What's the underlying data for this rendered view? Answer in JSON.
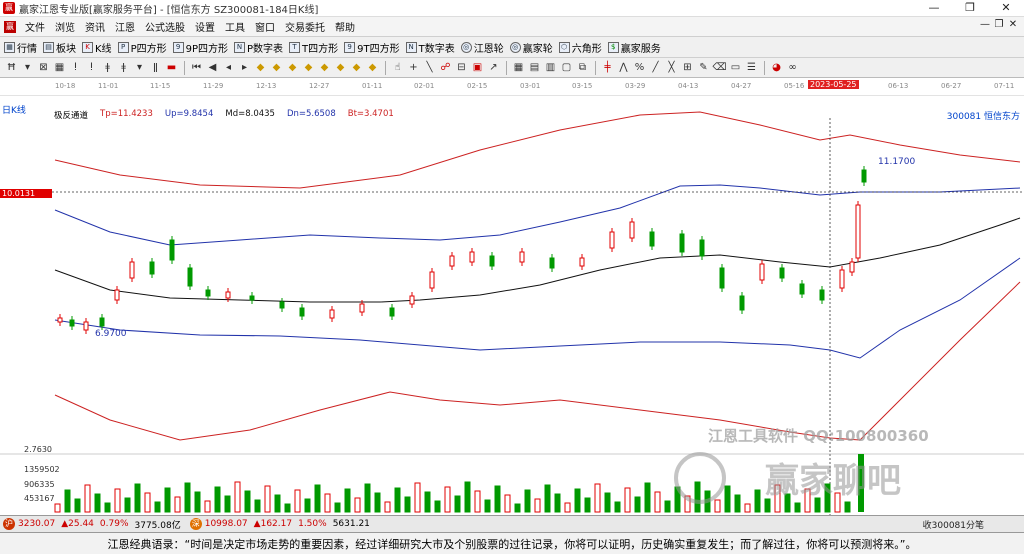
{
  "window": {
    "title": "赢家江恩专业版[赢家服务平台] - [恒信东方  SZ300081-184日K线]",
    "min_label": "—",
    "max_label": "❐",
    "close_label": "✕"
  },
  "menu": {
    "items": [
      "文件",
      "浏览",
      "资讯",
      "江恩",
      "公式选股",
      "设置",
      "工具",
      "窗口",
      "交易委托",
      "帮助"
    ],
    "mdi": [
      "—",
      "❐",
      "✕"
    ]
  },
  "toolbar1": {
    "items": [
      {
        "icon": "grid-icon",
        "label": "行情"
      },
      {
        "icon": "blocks-icon",
        "label": "板块"
      },
      {
        "icon": "k-icon",
        "label": "K线"
      },
      {
        "icon": "p-square-icon",
        "label": "P四方形"
      },
      {
        "icon": "9p-square-icon",
        "label": "9P四方形"
      },
      {
        "icon": "pn-square-icon",
        "label": "P数字表"
      },
      {
        "icon": "t-square-icon",
        "label": "T四方形"
      },
      {
        "icon": "9t-square-icon",
        "label": "9T四方形"
      },
      {
        "icon": "tn-square-icon",
        "label": "T数字表"
      },
      {
        "icon": "wheel-icon",
        "label": "江恩轮"
      },
      {
        "icon": "wheel2-icon",
        "label": "赢家轮"
      },
      {
        "icon": "hexagon-icon",
        "label": "六角形"
      },
      {
        "icon": "service-icon",
        "label": "赢家服务"
      }
    ]
  },
  "dates": [
    "10-18",
    "11-01",
    "11-15",
    "11-29",
    "12-13",
    "12-27",
    "01-11",
    "02-01",
    "02-15",
    "03-01",
    "03-15",
    "03-29",
    "04-13",
    "04-27",
    "05-16",
    "06-13",
    "06-27",
    "07-11"
  ],
  "current_date": "2023-05-25",
  "chart": {
    "period_label": "日K线",
    "indicator_name": "极反通道",
    "tp": "Tp=11.4233",
    "up": "Up=9.8454",
    "md": "Md=8.0435",
    "dn": "Dn=5.6508",
    "bt": "Bt=3.4701",
    "stock": "300081  恒信东方",
    "price_marker": "10.0131",
    "high_label": "11.1700",
    "low_label": "6.9700",
    "bottom_label": "2.7630",
    "colors": {
      "up": "#e00000",
      "down": "#009900",
      "top_band": "#cc2222",
      "upper_band": "#2233aa",
      "mid": "#111111"
    }
  },
  "volume": {
    "labels": [
      "1359502",
      "906335",
      "453167"
    ]
  },
  "watermark": {
    "text1": "江恩工具软件  QQ:100800360",
    "text2": "赢家聊吧"
  },
  "status": {
    "sh_index": "3230.07",
    "sh_change": "▲25.44",
    "sh_pct": "0.79%",
    "sh_amount": "3775.08亿",
    "sz_index": "10998.07",
    "sz_change": "▲162.17",
    "sz_pct": "1.50%",
    "sz_amount": "5631.21",
    "right_text": "收300081分笔"
  },
  "quote": "江恩经典语录：“时间是决定市场走势的重要因素，经过详细研究大市及个别股票的过往记录，你将可以证明，历史确实重复发生；而了解过往，你将可以预测将来。”。"
}
